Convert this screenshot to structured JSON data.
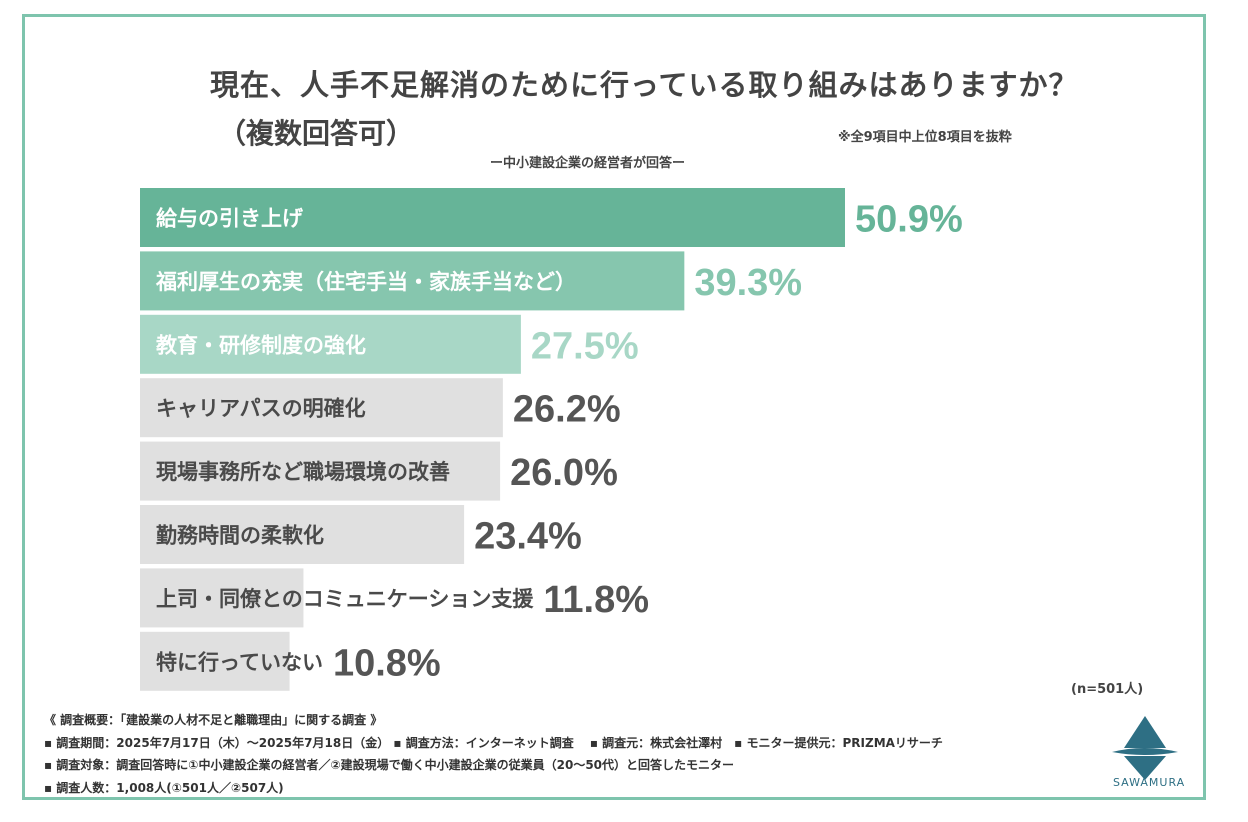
{
  "heading": {
    "title": "現在、人手不足解消のために行っている取り組みはありますか？",
    "subtitle": "（複数回答可）",
    "note": "※全9項目中上位8項目を抜粋",
    "respondent": "ー中小建設企業の経営者が回答ー"
  },
  "chart_data": {
    "type": "bar",
    "orientation": "horizontal",
    "categories": [
      "給与の引き上げ",
      "福利厚生の充実（住宅手当・家族手当など）",
      "教育・研修制度の強化",
      "キャリアパスの明確化",
      "現場事務所など職場環境の改善",
      "勤務時間の柔軟化",
      "上司・同僚とのコミュニケーション支援",
      "特に行っていない"
    ],
    "values": [
      50.9,
      39.3,
      27.5,
      26.2,
      26.0,
      23.4,
      11.8,
      10.8
    ],
    "value_labels": [
      "50.9%",
      "39.3%",
      "27.5%",
      "26.2%",
      "26.0%",
      "23.4%",
      "11.8%",
      "10.8%"
    ],
    "bar_colors": [
      "#66b498",
      "#86c6ae",
      "#a8d7c6",
      "#e0e0e0",
      "#e0e0e0",
      "#e0e0e0",
      "#e0e0e0",
      "#e0e0e0"
    ],
    "label_colors": [
      "#ffffff",
      "#ffffff",
      "#ffffff",
      "#4a4a4a",
      "#4a4a4a",
      "#4a4a4a",
      "#4a4a4a",
      "#4a4a4a"
    ],
    "value_colors": [
      "#66b498",
      "#86c6ae",
      "#a8d7c6",
      "#555555",
      "#555555",
      "#555555",
      "#555555",
      "#555555"
    ],
    "xlim": [
      0,
      50.9
    ],
    "grid": false,
    "legend": "none"
  },
  "sample": "(n=501人)",
  "footer": {
    "line1": "《 調査概要：「建設業の人材不足と離職理由」に関する調査 》",
    "line2": "▪ 調査期間：2025年7月17日（木）～2025年7月18日（金） ▪ 調査方法：インターネット調査　 ▪ 調査元：株式会社澤村　▪ モニター提供元：PRIZMAリサーチ",
    "line3": "▪ 調査対象：調査回答時に①中小建設企業の経営者／②建設現場で働く中小建設企業の従業員（20～50代）と回答したモニター",
    "line4": "▪ 調査人数：1,008人(①501人／②507人)"
  },
  "logo": {
    "text": "SAWAMURA",
    "color": "#2e6f84"
  }
}
